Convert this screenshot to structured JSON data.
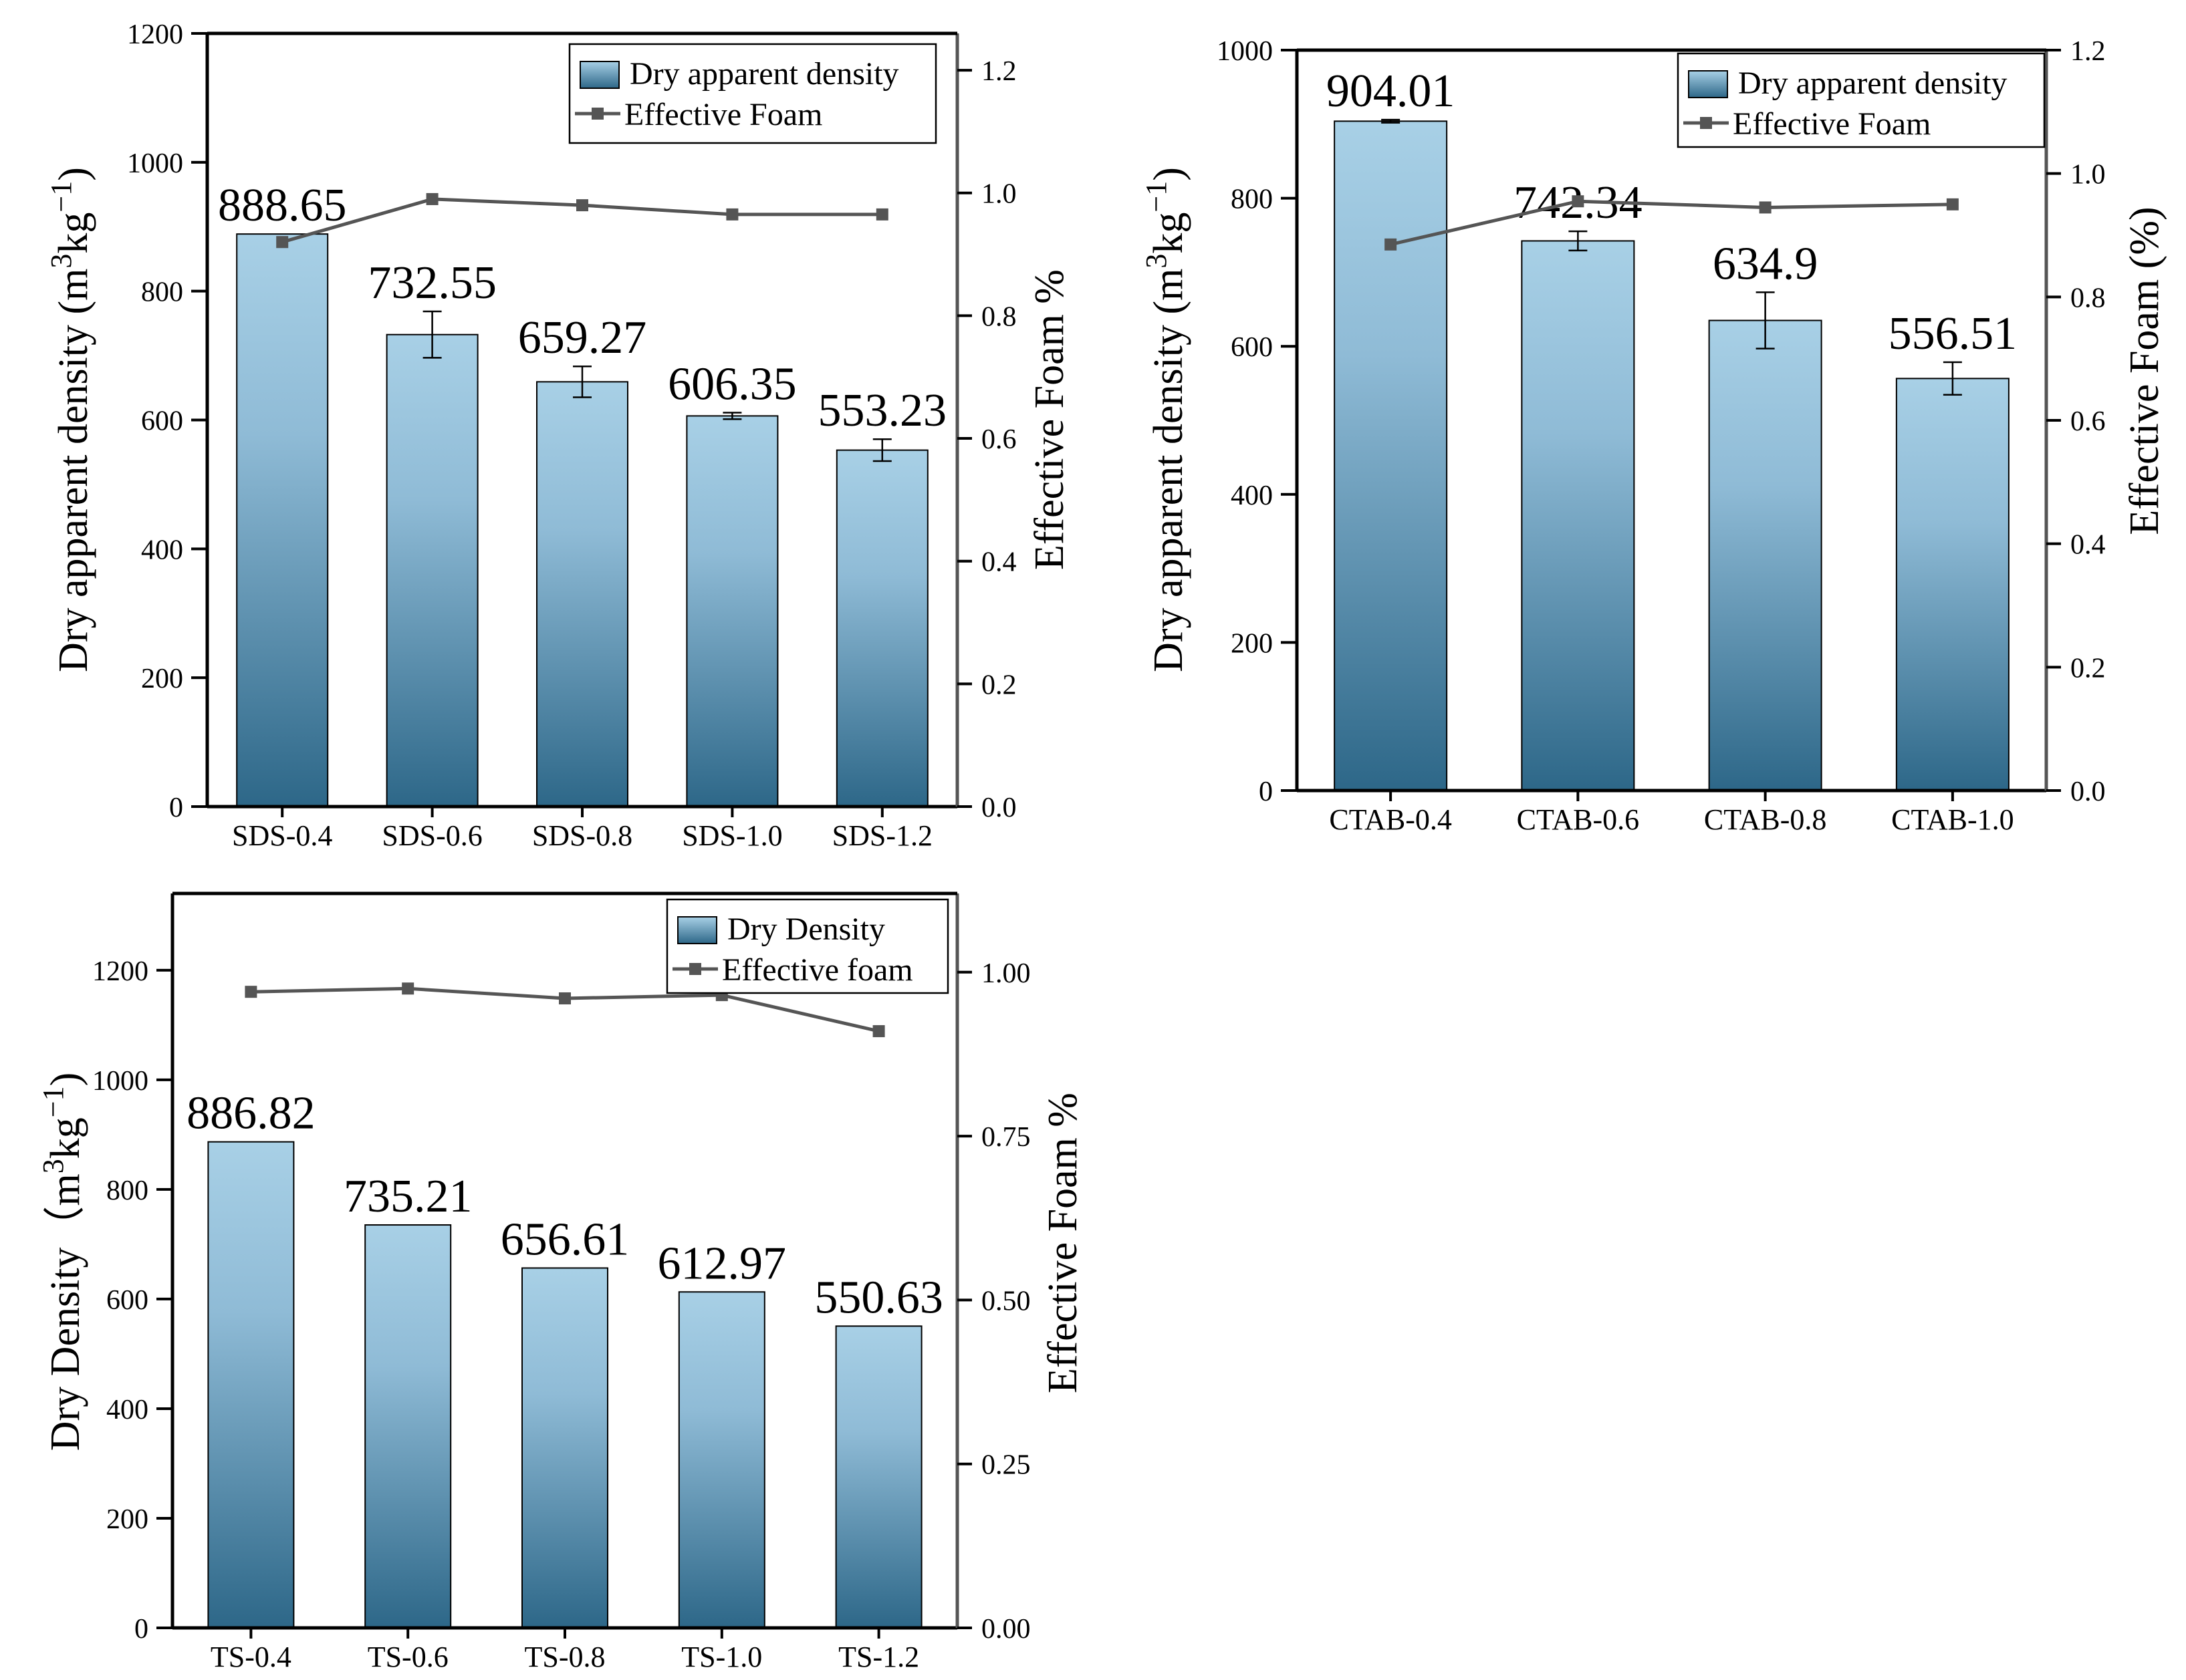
{
  "chart_data": [
    {
      "type": "bar",
      "id": "sds",
      "categories": [
        "SDS-0.4",
        "SDS-0.6",
        "SDS-0.8",
        "SDS-1.0",
        "SDS-1.2"
      ],
      "series": [
        {
          "name": "Dry apparent density",
          "type": "bar",
          "axis": "left",
          "values": [
            888.65,
            732.55,
            659.27,
            606.35,
            553.23
          ],
          "errors": [
            0,
            36,
            24,
            5,
            17
          ],
          "labels": [
            "888.65",
            "732.55",
            "659.27",
            "606.35",
            "553.23"
          ]
        },
        {
          "name": "Effective Foam",
          "type": "line",
          "axis": "right",
          "values": [
            0.92,
            0.99,
            0.98,
            0.965,
            0.965
          ]
        }
      ],
      "ylabel_left": [
        "Dry apparent density (m",
        "3",
        "kg",
        "−1",
        ")"
      ],
      "ylabel_right": "Effective Foam %",
      "ylim_left": [
        0,
        1200
      ],
      "yticks_left": [
        "0",
        "200",
        "400",
        "600",
        "800",
        "1000",
        "1200"
      ],
      "ylim_right": [
        0,
        1.26
      ],
      "yticks_right": [
        "0.0",
        "0.2",
        "0.4",
        "0.6",
        "0.8",
        "1.0",
        "1.2"
      ],
      "legend": [
        "Dry apparent density",
        "Effective Foam"
      ],
      "legend_position": "top-right"
    },
    {
      "type": "bar",
      "id": "ctab",
      "categories": [
        "CTAB-0.4",
        "CTAB-0.6",
        "CTAB-0.8",
        "CTAB-1.0"
      ],
      "series": [
        {
          "name": "Dry apparent density",
          "type": "bar",
          "axis": "left",
          "values": [
            904.01,
            742.34,
            634.9,
            556.51
          ],
          "errors": [
            2,
            13,
            38,
            22
          ],
          "labels": [
            "904.01",
            "742.34",
            "634.9",
            "556.51"
          ]
        },
        {
          "name": "Effective Foam",
          "type": "line",
          "axis": "right",
          "values": [
            0.885,
            0.955,
            0.945,
            0.95
          ]
        }
      ],
      "ylabel_left": [
        "Dry apparent  density (m",
        "3",
        "kg",
        "−1",
        ")"
      ],
      "ylabel_right": "Effective Foam (%)",
      "ylim_left": [
        0,
        1000
      ],
      "yticks_left": [
        "0",
        "200",
        "400",
        "600",
        "800",
        "1000"
      ],
      "ylim_right": [
        0,
        1.2
      ],
      "yticks_right": [
        "0.0",
        "0.2",
        "0.4",
        "0.6",
        "0.8",
        "1.0",
        "1.2"
      ],
      "legend": [
        "Dry apparent density",
        "Effective Foam"
      ],
      "legend_position": "top-right"
    },
    {
      "type": "bar",
      "id": "ts",
      "categories": [
        "TS-0.4",
        "TS-0.6",
        "TS-0.8",
        "TS-1.0",
        "TS-1.2"
      ],
      "series": [
        {
          "name": "Dry Density",
          "type": "bar",
          "axis": "left",
          "values": [
            886.82,
            735.21,
            656.61,
            612.97,
            550.63
          ],
          "errors": [
            0,
            0,
            0,
            0,
            0
          ],
          "labels": [
            "886.82",
            "735.21",
            "656.61",
            "612.97",
            "550.63"
          ]
        },
        {
          "name": "Effective foam",
          "type": "line",
          "axis": "right",
          "values": [
            0.97,
            0.975,
            0.96,
            0.965,
            0.91
          ]
        }
      ],
      "ylabel_left": [
        "Dry Density（m",
        "3",
        "kg",
        "−1",
        ")"
      ],
      "ylabel_right": "Effective Foam %",
      "ylim_left": [
        0,
        1340
      ],
      "yticks_left": [
        "0",
        "200",
        "400",
        "600",
        "800",
        "1000",
        "1200"
      ],
      "ylim_right": [
        0,
        1.12
      ],
      "yticks_right": [
        "0.00",
        "0.25",
        "0.50",
        "0.75",
        "1.00"
      ],
      "legend": [
        "Dry Density",
        "Effective foam"
      ],
      "legend_position": "top-right"
    }
  ],
  "colors": {
    "bar_top": "#a8d0e6",
    "bar_bottom": "#2d6788",
    "line": "#555555",
    "axis": "#000000"
  }
}
